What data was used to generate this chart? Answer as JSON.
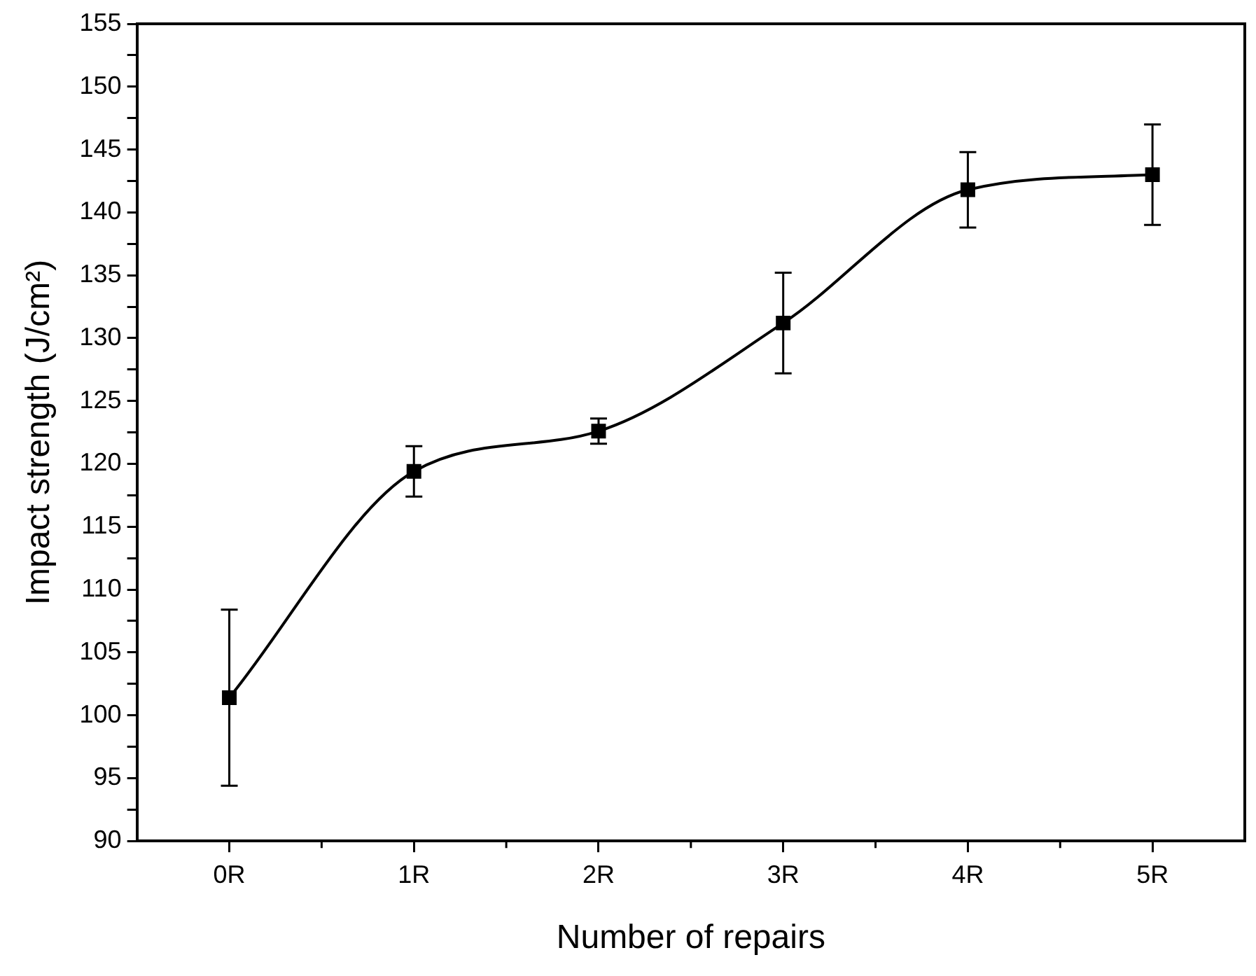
{
  "chart_data": {
    "type": "line",
    "xlabel": "Number of repairs",
    "ylabel": "Impact strength (J/cm²)",
    "categories": [
      "0R",
      "1R",
      "2R",
      "3R",
      "4R",
      "5R"
    ],
    "series": [
      {
        "color": "#000000",
        "values": [
          101.4,
          119.4,
          122.6,
          131.2,
          141.8,
          143.0
        ],
        "errors": [
          7,
          2,
          1,
          4,
          3,
          4
        ]
      }
    ],
    "ylim": [
      90,
      155
    ],
    "yticks": [
      90,
      {
        "value": 92.5,
        "label": null
      },
      95,
      {
        "value": 97.5,
        "label": null
      },
      100,
      {
        "value": 102.5,
        "label": null
      },
      105,
      {
        "value": 107.5,
        "label": null
      },
      110,
      {
        "value": 112.5,
        "label": null
      },
      115,
      {
        "value": 117.5,
        "label": null
      },
      120,
      {
        "value": 122.5,
        "label": null
      },
      125,
      {
        "value": 127.5,
        "label": null
      },
      130,
      {
        "value": 132.5,
        "label": null
      },
      135,
      {
        "value": 137.5,
        "label": null
      },
      140,
      {
        "value": 142.5,
        "label": null
      },
      145,
      {
        "value": 147.5,
        "label": null
      },
      150,
      {
        "value": 152.5,
        "label": null
      },
      155
    ],
    "grid": false,
    "legend": false,
    "marker": "square",
    "line_style": "solid"
  }
}
